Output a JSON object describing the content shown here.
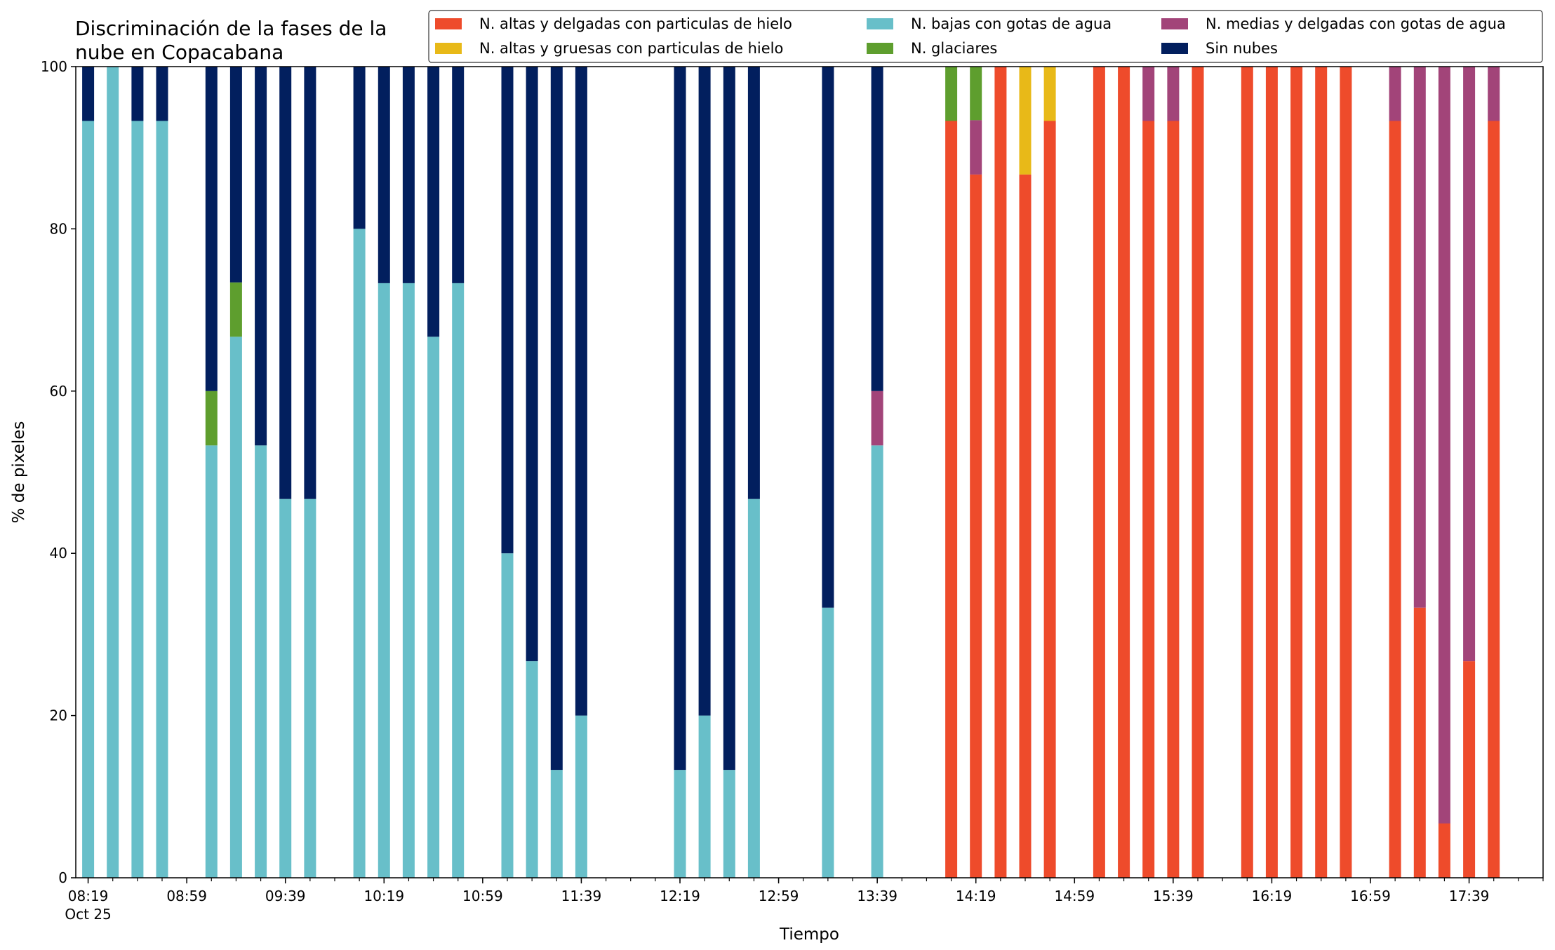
{
  "chart_data": {
    "type": "bar",
    "stacked": true,
    "title_lines": [
      "Discriminación de la fases de la",
      "nube en Copacabana"
    ],
    "xlabel": "Tiempo",
    "ylabel": "% de pixeles",
    "ylim": [
      0,
      100
    ],
    "y_ticks": [
      "0",
      "20",
      "40",
      "60",
      "80",
      "100"
    ],
    "x_ticks": [
      {
        "t": "08:19",
        "label": "08:19",
        "sub": "Oct 25"
      },
      {
        "t": "08:59",
        "label": "08:59",
        "sub": ""
      },
      {
        "t": "09:39",
        "label": "09:39",
        "sub": ""
      },
      {
        "t": "10:19",
        "label": "10:19",
        "sub": ""
      },
      {
        "t": "10:59",
        "label": "10:59",
        "sub": ""
      },
      {
        "t": "11:39",
        "label": "11:39",
        "sub": ""
      },
      {
        "t": "12:19",
        "label": "12:19",
        "sub": ""
      },
      {
        "t": "12:59",
        "label": "12:59",
        "sub": ""
      },
      {
        "t": "13:39",
        "label": "13:39",
        "sub": ""
      },
      {
        "t": "14:19",
        "label": "14:19",
        "sub": ""
      },
      {
        "t": "14:59",
        "label": "14:59",
        "sub": ""
      },
      {
        "t": "15:39",
        "label": "15:39",
        "sub": ""
      },
      {
        "t": "16:19",
        "label": "16:19",
        "sub": ""
      },
      {
        "t": "16:59",
        "label": "16:59",
        "sub": ""
      },
      {
        "t": "17:39",
        "label": "17:39",
        "sub": ""
      }
    ],
    "x_range": [
      "08:14",
      "18:09"
    ],
    "legend_position": "top-right",
    "series": [
      {
        "key": "hielo_delgadas",
        "name": "N. altas y delgadas con particulas de hielo",
        "color": "#ee4b2b"
      },
      {
        "key": "hielo_gruesas",
        "name": "N. altas y gruesas con particulas de hielo",
        "color": "#e8b918"
      },
      {
        "key": "bajas_agua",
        "name": "N. bajas con gotas de agua",
        "color": "#68bfc9"
      },
      {
        "key": "glaciares",
        "name": "N. glaciares",
        "color": "#5e9e2e"
      },
      {
        "key": "medias_agua",
        "name": "N. medias y delgadas con gotas de agua",
        "color": "#a24479"
      },
      {
        "key": "sin_nubes",
        "name": "Sin nubes",
        "color": "#021f5e"
      }
    ],
    "stack_order": [
      "hielo_delgadas",
      "hielo_gruesas",
      "bajas_agua",
      "medias_agua",
      "glaciares",
      "sin_nubes"
    ],
    "bars": [
      {
        "t": "08:19",
        "bajas_agua": 93.3,
        "sin_nubes": 6.7
      },
      {
        "t": "08:29",
        "bajas_agua": 100
      },
      {
        "t": "08:39",
        "bajas_agua": 93.3,
        "sin_nubes": 6.7
      },
      {
        "t": "08:49",
        "bajas_agua": 93.3,
        "sin_nubes": 6.7
      },
      {
        "t": "09:09",
        "bajas_agua": 53.3,
        "glaciares": 6.7,
        "sin_nubes": 40
      },
      {
        "t": "09:19",
        "bajas_agua": 66.7,
        "glaciares": 6.7,
        "sin_nubes": 26.6
      },
      {
        "t": "09:29",
        "bajas_agua": 53.3,
        "sin_nubes": 46.7
      },
      {
        "t": "09:39",
        "bajas_agua": 46.7,
        "sin_nubes": 53.3
      },
      {
        "t": "09:49",
        "bajas_agua": 46.7,
        "sin_nubes": 53.3
      },
      {
        "t": "10:09",
        "bajas_agua": 80,
        "sin_nubes": 20
      },
      {
        "t": "10:19",
        "bajas_agua": 73.3,
        "sin_nubes": 26.7
      },
      {
        "t": "10:29",
        "bajas_agua": 73.3,
        "sin_nubes": 26.7
      },
      {
        "t": "10:39",
        "bajas_agua": 66.7,
        "sin_nubes": 33.3
      },
      {
        "t": "10:49",
        "bajas_agua": 73.3,
        "sin_nubes": 26.7
      },
      {
        "t": "11:09",
        "bajas_agua": 40,
        "sin_nubes": 60
      },
      {
        "t": "11:19",
        "bajas_agua": 26.7,
        "sin_nubes": 73.3
      },
      {
        "t": "11:29",
        "bajas_agua": 13.3,
        "sin_nubes": 86.7
      },
      {
        "t": "11:39",
        "bajas_agua": 20,
        "sin_nubes": 80
      },
      {
        "t": "12:19",
        "bajas_agua": 13.3,
        "sin_nubes": 86.7
      },
      {
        "t": "12:29",
        "bajas_agua": 20,
        "sin_nubes": 80
      },
      {
        "t": "12:39",
        "bajas_agua": 13.3,
        "sin_nubes": 86.7
      },
      {
        "t": "12:49",
        "bajas_agua": 46.7,
        "sin_nubes": 53.3
      },
      {
        "t": "13:19",
        "bajas_agua": 33.3,
        "sin_nubes": 66.7
      },
      {
        "t": "13:39",
        "bajas_agua": 53.3,
        "medias_agua": 6.7,
        "sin_nubes": 40
      },
      {
        "t": "14:09",
        "hielo_delgadas": 93.3,
        "glaciares": 6.7
      },
      {
        "t": "14:19",
        "hielo_delgadas": 86.7,
        "glaciares": 6.6,
        "medias_agua": 6.7
      },
      {
        "t": "14:29",
        "hielo_delgadas": 100
      },
      {
        "t": "14:39",
        "hielo_delgadas": 86.7,
        "hielo_gruesas": 13.3
      },
      {
        "t": "14:49",
        "hielo_delgadas": 93.3,
        "hielo_gruesas": 6.7
      },
      {
        "t": "15:09",
        "hielo_delgadas": 100
      },
      {
        "t": "15:19",
        "hielo_delgadas": 100
      },
      {
        "t": "15:29",
        "hielo_delgadas": 93.3,
        "medias_agua": 6.7
      },
      {
        "t": "15:39",
        "hielo_delgadas": 93.3,
        "medias_agua": 6.7
      },
      {
        "t": "15:49",
        "hielo_delgadas": 100
      },
      {
        "t": "16:09",
        "hielo_delgadas": 100
      },
      {
        "t": "16:19",
        "hielo_delgadas": 100
      },
      {
        "t": "16:29",
        "hielo_delgadas": 100
      },
      {
        "t": "16:39",
        "hielo_delgadas": 100
      },
      {
        "t": "16:49",
        "hielo_delgadas": 100
      },
      {
        "t": "17:09",
        "hielo_delgadas": 93.3,
        "medias_agua": 6.7
      },
      {
        "t": "17:19",
        "hielo_delgadas": 33.3,
        "medias_agua": 66.7
      },
      {
        "t": "17:29",
        "hielo_delgadas": 6.7,
        "medias_agua": 93.3
      },
      {
        "t": "17:39",
        "hielo_delgadas": 26.7,
        "medias_agua": 73.3
      },
      {
        "t": "17:49",
        "hielo_delgadas": 93.3,
        "medias_agua": 6.7
      }
    ]
  }
}
